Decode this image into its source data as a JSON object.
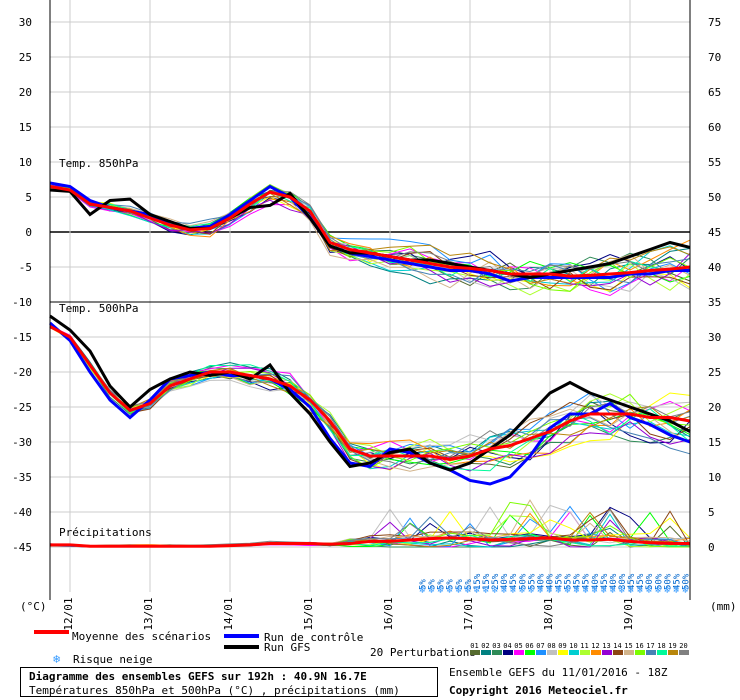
{
  "chart_data": {
    "type": "line",
    "left_axis": {
      "label": "(°C)",
      "min": -45,
      "max": 30,
      "ticks": [
        30,
        25,
        20,
        15,
        10,
        5,
        0,
        -5,
        -10,
        -15,
        -20,
        -25,
        -30,
        -35,
        -40,
        -45
      ]
    },
    "right_axis": {
      "label": "(mm)",
      "min": 0,
      "max": 75,
      "ticks": [
        75,
        70,
        65,
        60,
        55,
        50,
        45,
        40,
        35,
        30,
        25,
        20,
        15,
        10,
        5,
        0
      ]
    },
    "x_tick_labels": [
      "12/01",
      "13/01",
      "14/01",
      "15/01",
      "16/01",
      "17/01",
      "18/01",
      "19/01"
    ],
    "panel_labels": {
      "t850": "Temp. 850hPa",
      "t500": "Temp. 500hPa",
      "precip": "Précipitations"
    },
    "x_hours": [
      0,
      6,
      12,
      18,
      24,
      30,
      36,
      42,
      48,
      54,
      60,
      66,
      72,
      78,
      84,
      90,
      96,
      102,
      108,
      114,
      120,
      126,
      132,
      138,
      144,
      150,
      156,
      162,
      168,
      174,
      180,
      186,
      192
    ],
    "series": [
      {
        "name": "Moyenne des scénarios",
        "color": "#ff0000",
        "panel": "t850",
        "values": [
          6.5,
          6,
          4,
          3.5,
          3,
          2,
          1,
          0.3,
          0.5,
          2,
          4,
          5.7,
          5,
          3,
          -1.5,
          -2.5,
          -3,
          -3.5,
          -4,
          -4.5,
          -5,
          -5.2,
          -5.5,
          -6,
          -6,
          -6,
          -6.3,
          -6.2,
          -6,
          -5.8,
          -5.5,
          -5.3,
          -5
        ]
      },
      {
        "name": "Run GFS",
        "color": "#000000",
        "panel": "t850",
        "values": [
          6,
          5.8,
          2.5,
          4.5,
          4.7,
          2.5,
          1.5,
          0.5,
          0.5,
          2,
          3.5,
          3.8,
          5.5,
          2,
          -2,
          -3,
          -3,
          -3.5,
          -4,
          -4,
          -4.5,
          -5,
          -5.5,
          -6,
          -6.5,
          -6,
          -5.5,
          -5,
          -4.5,
          -3.5,
          -2.5,
          -1.5,
          -2.2
        ]
      },
      {
        "name": "Run de contrôle",
        "color": "#0000ff",
        "panel": "t850",
        "values": [
          7,
          6.5,
          4.5,
          3.5,
          3,
          2.5,
          1,
          0.5,
          0.8,
          2.5,
          4.5,
          6.5,
          5,
          2,
          -2,
          -3,
          -3.5,
          -4,
          -4.5,
          -5,
          -5.5,
          -5.5,
          -6,
          -7,
          -6.5,
          -6.5,
          -6.5,
          -6.5,
          -6.5,
          -6,
          -6,
          -5.5,
          -5.5
        ]
      },
      {
        "name": "Moyenne des scénarios",
        "color": "#ff0000",
        "panel": "t500",
        "values": [
          -13.5,
          -15,
          -19,
          -23,
          -25.5,
          -24.5,
          -22,
          -21,
          -20,
          -20,
          -20.5,
          -21,
          -22,
          -24,
          -27,
          -31,
          -32,
          -32,
          -32,
          -32,
          -32.5,
          -32,
          -31,
          -30.5,
          -29.5,
          -28.5,
          -27,
          -26,
          -26,
          -26,
          -26.5,
          -26.5,
          -27
        ]
      },
      {
        "name": "Run GFS",
        "color": "#000000",
        "panel": "t500",
        "values": [
          -12,
          -14,
          -17,
          -22,
          -25,
          -22.5,
          -21,
          -20,
          -20.5,
          -20,
          -21,
          -19,
          -23,
          -26,
          -30,
          -33.5,
          -33,
          -31.5,
          -31,
          -33,
          -34,
          -33,
          -31,
          -29,
          -26,
          -23,
          -21.5,
          -23,
          -24,
          -25,
          -26,
          -27,
          -28.5
        ]
      },
      {
        "name": "Run de contrôle",
        "color": "#0000ff",
        "panel": "t500",
        "values": [
          -13,
          -15.5,
          -20,
          -24,
          -26.5,
          -24,
          -21,
          -20.5,
          -20,
          -20.5,
          -20.5,
          -21,
          -22.5,
          -25,
          -29.5,
          -33,
          -33.5,
          -31,
          -31.5,
          -33,
          -34,
          -35.5,
          -36,
          -35,
          -32,
          -28,
          -26,
          -26,
          -24.5,
          -26.5,
          -27.5,
          -29,
          -30
        ]
      },
      {
        "name": "Moyenne des scénarios",
        "color": "#ff0000",
        "panel": "precip",
        "values": [
          0.3,
          0.3,
          0.1,
          0.1,
          0.1,
          0.1,
          0.1,
          0.1,
          0.1,
          0.2,
          0.3,
          0.5,
          0.5,
          0.5,
          0.4,
          0.5,
          0.8,
          0.8,
          1,
          1.2,
          1.3,
          1.2,
          1,
          1.1,
          1.2,
          1.3,
          1,
          1,
          1.1,
          0.8,
          0.6,
          0.5,
          0.5
        ]
      }
    ],
    "perturbations_note": "20 Perturbations",
    "perturbation_ids": [
      "01",
      "02",
      "03",
      "04",
      "05",
      "06",
      "07",
      "08",
      "09",
      "10",
      "11",
      "12",
      "13",
      "14",
      "15",
      "16",
      "17",
      "18",
      "19",
      "20"
    ],
    "perturbation_colors": [
      "#556b2f",
      "#008080",
      "#2e8b57",
      "#000080",
      "#ff00ff",
      "#00ff00",
      "#1e90ff",
      "#c0c0c0",
      "#ffff00",
      "#00ced1",
      "#adff2f",
      "#ff8c00",
      "#9400d3",
      "#8b4513",
      "#d2b48c",
      "#7cfc00",
      "#4682b4",
      "#00fa9a",
      "#b8860b",
      "#808080"
    ],
    "snow_risk_percent": [
      "5%",
      "5%",
      "5%",
      "5%",
      "5%",
      "5%",
      "15%",
      "15%",
      "25%",
      "40%",
      "45%",
      "50%",
      "55%",
      "40%",
      "40%",
      "45%",
      "55%",
      "45%",
      "45%",
      "40%",
      "45%",
      "40%",
      "30%",
      "45%",
      "45%",
      "50%",
      "50%",
      "50%",
      "45%",
      "50%"
    ]
  },
  "legend": {
    "mean": "Moyenne des scénarios",
    "control": "Run de contrôle",
    "gfs": "Run GFS",
    "snow": "Risque neige",
    "perturbations": "20 Perturbations"
  },
  "footer": {
    "title": "Diagramme des ensembles GEFS sur 192h : 40.9N 16.7E",
    "subtitle": "Températures 850hPa et 500hPa (°C) , précipitations (mm)",
    "run_info": "Ensemble GEFS du 11/01/2016 - 18Z",
    "copyright": "Copyright 2016 Meteociel.fr"
  },
  "colors": {
    "mean": "#ff0000",
    "control": "#0000ff",
    "gfs": "#000000",
    "snow_icon": "#3399ff"
  }
}
